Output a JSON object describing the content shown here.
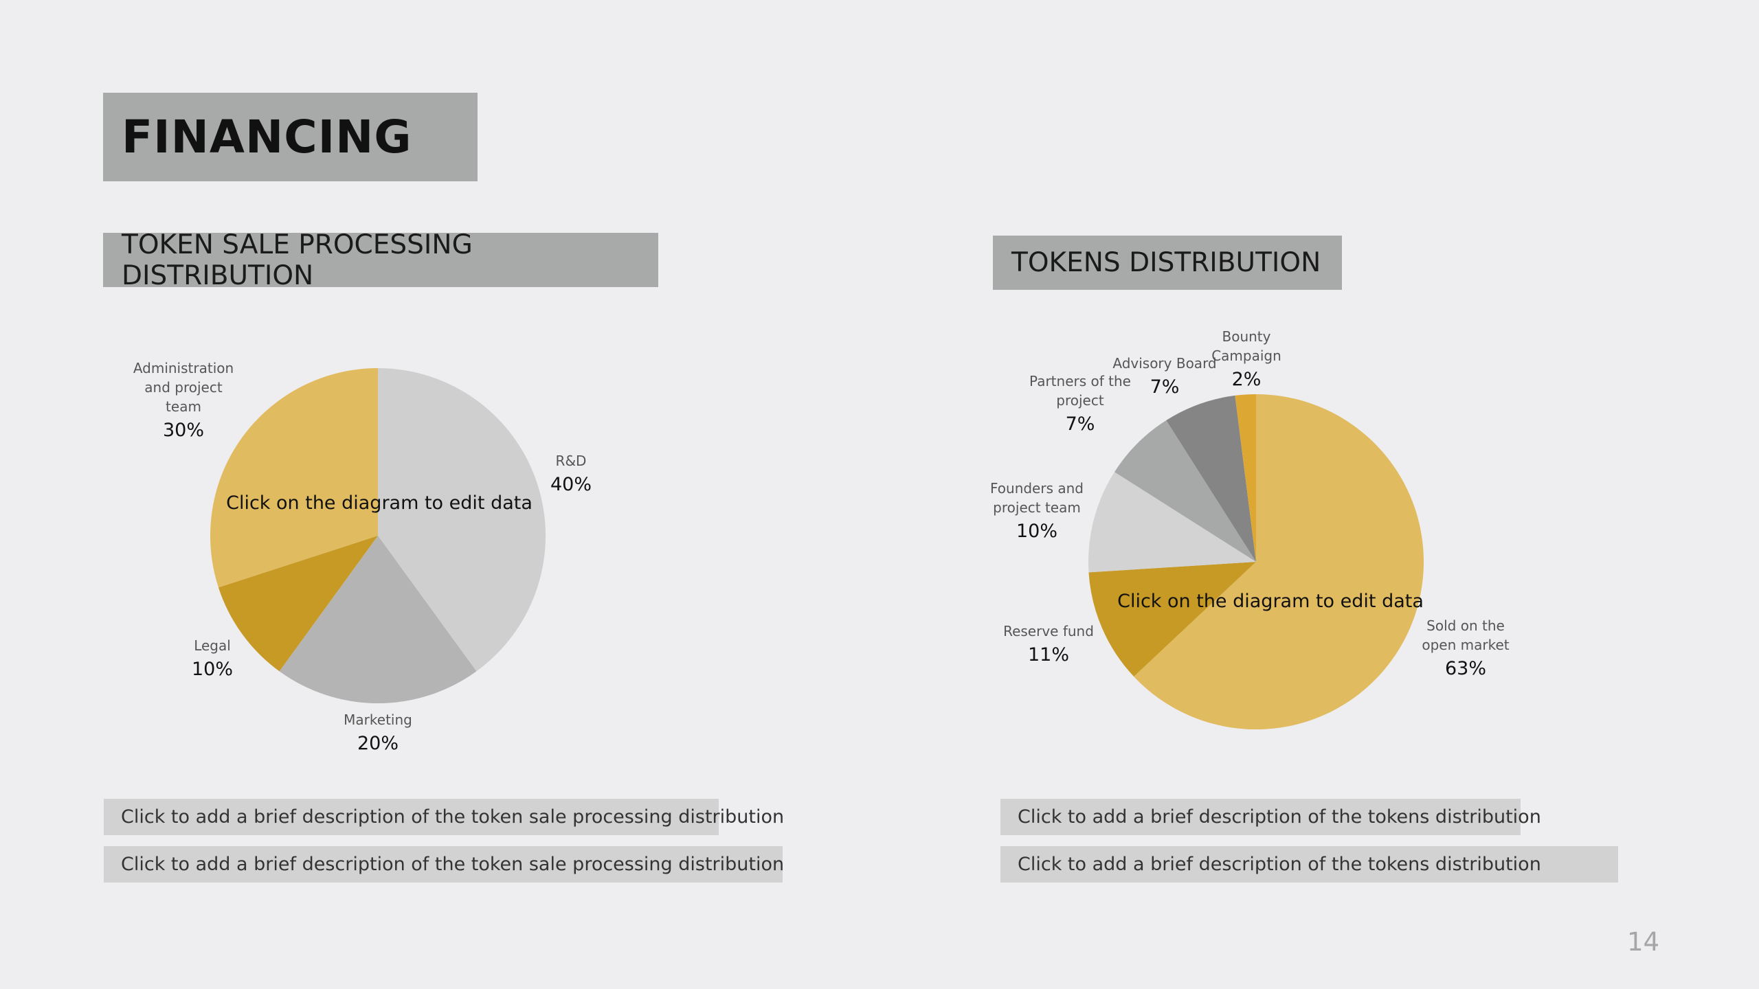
{
  "slide": {
    "title": "FINANCING",
    "page_number": "14"
  },
  "left": {
    "heading": "TOKEN SALE PROCESSING DISTRIBUTION",
    "center_note": "Click on the diagram to edit data",
    "descriptions": [
      "Click to add a brief description of the token sale processing distribution",
      "Click to add a brief description of the token sale processing distribution"
    ]
  },
  "right": {
    "heading": "TOKENS DISTRIBUTION",
    "center_note": "Click on the diagram to edit data",
    "descriptions": [
      "Click to add a brief description of the tokens distribution",
      "Click to add a brief description of the tokens distribution"
    ]
  },
  "chart_data": [
    {
      "type": "pie",
      "title": "TOKEN SALE PROCESSING DISTRIBUTION",
      "slices": [
        {
          "label": [
            "R&D"
          ],
          "value": 40,
          "display": "40%",
          "color": "#cfcfcf"
        },
        {
          "label": [
            "Marketing"
          ],
          "value": 20,
          "display": "20%",
          "color": "#b4b4b4"
        },
        {
          "label": [
            "Legal"
          ],
          "value": 10,
          "display": "10%",
          "color": "#c69a24"
        },
        {
          "label": [
            "Administration",
            "and project",
            "team"
          ],
          "value": 30,
          "display": "30%",
          "color": "#e1bb5f"
        }
      ]
    },
    {
      "type": "pie",
      "title": "TOKENS DISTRIBUTION",
      "slices": [
        {
          "label": [
            "Sold on the",
            "open market"
          ],
          "value": 63,
          "display": "63%",
          "color": "#e1bb5f"
        },
        {
          "label": [
            "Reserve fund"
          ],
          "value": 11,
          "display": "11%",
          "color": "#c69a24"
        },
        {
          "label": [
            "Founders and",
            "project team"
          ],
          "value": 10,
          "display": "10%",
          "color": "#d3d3d3"
        },
        {
          "label": [
            "Partners of the",
            "project"
          ],
          "value": 7,
          "display": "7%",
          "color": "#a7a9a8"
        },
        {
          "label": [
            "Advisory Board"
          ],
          "value": 7,
          "display": "7%",
          "color": "#858585"
        },
        {
          "label": [
            "Bounty",
            "Campaign"
          ],
          "value": 2,
          "display": "2%",
          "color": "#dca833"
        }
      ]
    }
  ]
}
